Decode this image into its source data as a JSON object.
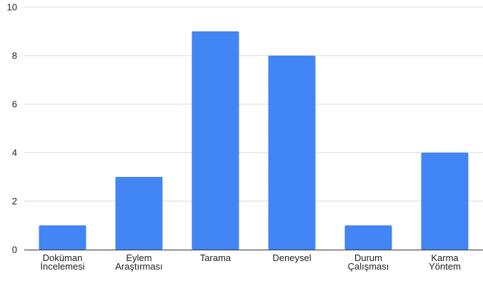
{
  "chart_data": {
    "type": "bar",
    "categories": [
      [
        "Doküman",
        "İncelemesi"
      ],
      [
        "Eylem",
        "Araştırması"
      ],
      [
        "Tarama"
      ],
      [
        "Deneysel"
      ],
      [
        "Durum",
        "Çalışması"
      ],
      [
        "Karma",
        "Yöntem"
      ]
    ],
    "values": [
      1,
      3,
      9,
      8,
      1,
      4
    ],
    "ylim": [
      0,
      10
    ],
    "yticks": [
      "0",
      "2",
      "4",
      "6",
      "8",
      "10"
    ],
    "grid": true,
    "legend": "none",
    "colors": {
      "bar": "#4285f4",
      "grid": "#d9d9d9",
      "axis": "#333333"
    }
  }
}
